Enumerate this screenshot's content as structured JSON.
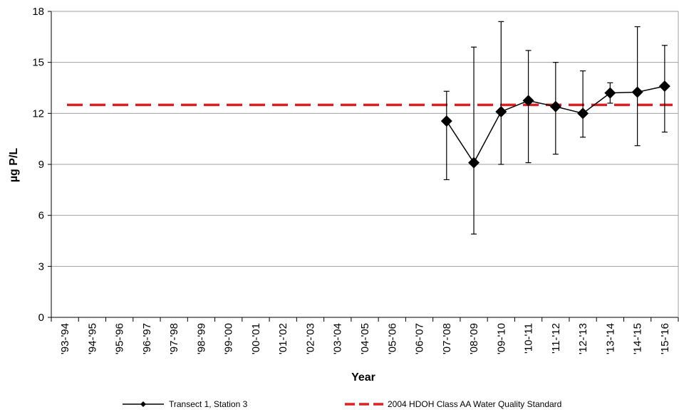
{
  "chart_data": {
    "type": "line",
    "title": "",
    "xlabel": "Year",
    "ylabel": "µg P/L",
    "ylim": [
      0,
      18
    ],
    "yticks": [
      "0",
      "3",
      "6",
      "9",
      "12",
      "15",
      "18"
    ],
    "categories": [
      "'93-'94",
      "'94-'95",
      "'95-'96",
      "'96-'97",
      "'97-'98",
      "'98-'99",
      "'99-'00",
      "'00-'01",
      "'01-'02",
      "'02-'03",
      "'03-'04",
      "'04-'05",
      "'05-'06",
      "'06-'07",
      "'07-'08",
      "'08-'09",
      "'09-'10",
      "'10-'11",
      "'11-'12",
      "'12-'13",
      "'13-'14",
      "'14-'15",
      "'15-'16"
    ],
    "grid": "horizontal",
    "legend_position": "bottom",
    "series": [
      {
        "name": "Transect 1, Station 3",
        "color": "#000000",
        "marker": "diamond",
        "values": [
          null,
          null,
          null,
          null,
          null,
          null,
          null,
          null,
          null,
          null,
          null,
          null,
          null,
          null,
          11.55,
          9.1,
          12.1,
          12.75,
          12.4,
          12.0,
          13.2,
          13.25,
          13.6
        ],
        "error_low": [
          null,
          null,
          null,
          null,
          null,
          null,
          null,
          null,
          null,
          null,
          null,
          null,
          null,
          null,
          8.1,
          4.9,
          9.0,
          9.1,
          9.6,
          10.6,
          12.6,
          10.1,
          10.9
        ],
        "error_high": [
          null,
          null,
          null,
          null,
          null,
          null,
          null,
          null,
          null,
          null,
          null,
          null,
          null,
          null,
          13.3,
          15.9,
          17.4,
          15.7,
          15.0,
          14.5,
          13.8,
          17.1,
          16.0
        ]
      },
      {
        "name": "2004 HDOH Class AA Water Quality Standard",
        "color": "#e02020",
        "style": "dashed",
        "constant": 12.5
      }
    ]
  }
}
